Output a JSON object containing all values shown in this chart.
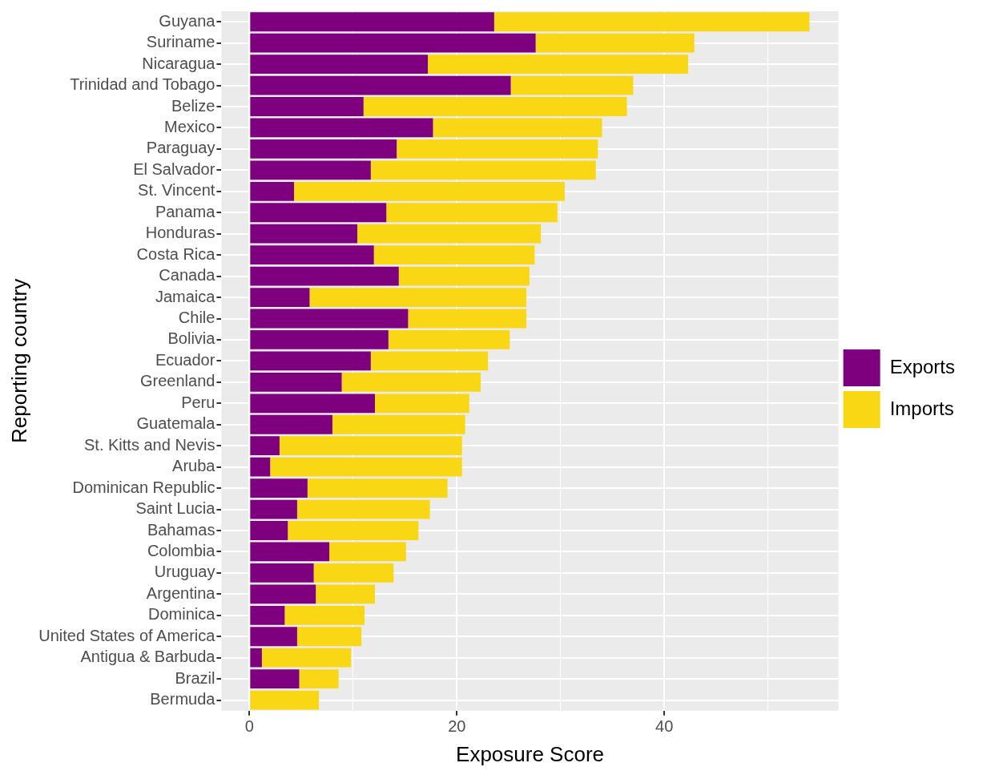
{
  "chart_data": {
    "type": "bar",
    "orientation": "horizontal",
    "stacked": true,
    "xlabel": "Exposure Score",
    "ylabel": "Reporting country",
    "categories": [
      "Guyana",
      "Suriname",
      "Nicaragua",
      "Trinidad and Tobago",
      "Belize",
      "Mexico",
      "Paraguay",
      "El Salvador",
      "St. Vincent",
      "Panama",
      "Honduras",
      "Costa Rica",
      "Canada",
      "Jamaica",
      "Chile",
      "Bolivia",
      "Ecuador",
      "Greenland",
      "Peru",
      "Guatemala",
      "St. Kitts and Nevis",
      "Aruba",
      "Dominican Republic",
      "Saint Lucia",
      "Bahamas",
      "Colombia",
      "Uruguay",
      "Argentina",
      "Dominica",
      "United States of America",
      "Antigua & Barbuda",
      "Brazil",
      "Bermuda"
    ],
    "series": [
      {
        "name": "Exports",
        "color": "#7f007f",
        "values": [
          23.6,
          27.6,
          17.2,
          25.2,
          11.0,
          17.7,
          14.2,
          11.7,
          4.3,
          13.2,
          10.4,
          12.0,
          14.4,
          5.8,
          15.3,
          13.4,
          11.7,
          8.9,
          12.1,
          8.0,
          2.9,
          2.0,
          5.6,
          4.6,
          3.7,
          7.7,
          6.2,
          6.4,
          3.4,
          4.6,
          1.2,
          4.8,
          0
        ]
      },
      {
        "name": "Imports",
        "color": "#f9d714",
        "values": [
          30.4,
          15.3,
          25.1,
          11.8,
          25.4,
          16.3,
          19.4,
          21.7,
          26.1,
          16.5,
          17.7,
          15.5,
          12.6,
          20.9,
          11.4,
          11.7,
          11.3,
          13.4,
          9.1,
          12.8,
          17.6,
          18.5,
          13.5,
          12.8,
          12.6,
          7.4,
          7.7,
          5.7,
          7.7,
          6.2,
          8.6,
          3.8,
          6.7
        ]
      }
    ],
    "xlim": [
      -2.7,
      56.8
    ],
    "xticks": [
      0,
      {
        "value": 10,
        "label": null
      },
      20,
      {
        "value": 30,
        "label": null
      },
      40,
      {
        "value": 50,
        "label": null
      }
    ],
    "grid": true,
    "legend": "right"
  }
}
